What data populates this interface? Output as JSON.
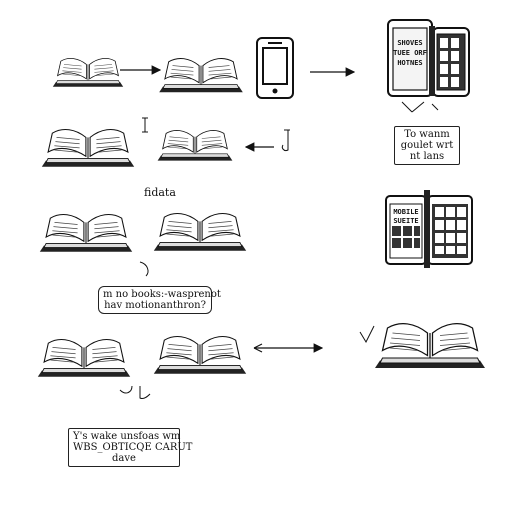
{
  "notes": {
    "top_right": {
      "line1": "To wanm",
      "line2": "goulet wrt",
      "line3": "nt lans"
    },
    "middle": {
      "line1": "m no books:-wasprenot",
      "line2": "hav motionanthron?"
    },
    "bottom": {
      "line1": "Y's wake unsfoas wm",
      "line2": "WBS_OBTICQE CARUT",
      "line3": "dave"
    }
  },
  "scrawls": {
    "fidata": "fidata"
  },
  "phone_cover_top": {
    "line1": "SHOVES",
    "line2": "TUEE ORF",
    "line3": "HOTNES"
  },
  "phone_cover_mid": {
    "line1": "MOBILE",
    "line2": "SUEITE"
  },
  "colors": {
    "ink": "#111111",
    "paper": "#ffffff",
    "page_shade": "#d9d9d9"
  }
}
